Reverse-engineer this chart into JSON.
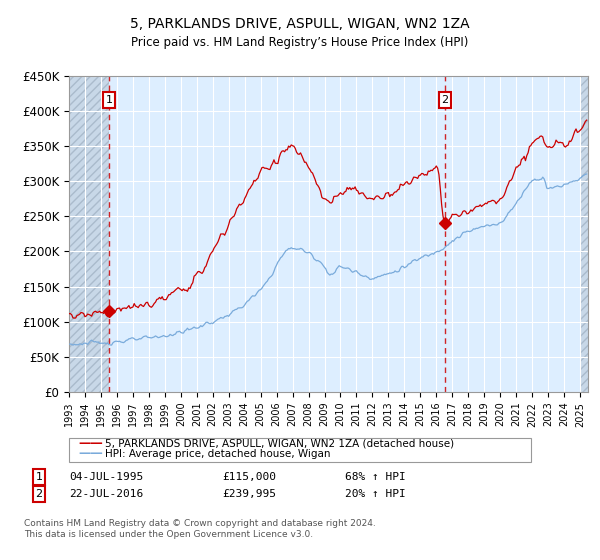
{
  "title": "5, PARKLANDS DRIVE, ASPULL, WIGAN, WN2 1ZA",
  "subtitle": "Price paid vs. HM Land Registry’s House Price Index (HPI)",
  "ylabel_ticks": [
    "£0",
    "£50K",
    "£100K",
    "£150K",
    "£200K",
    "£250K",
    "£300K",
    "£350K",
    "£400K",
    "£450K"
  ],
  "ytick_values": [
    0,
    50000,
    100000,
    150000,
    200000,
    250000,
    300000,
    350000,
    400000,
    450000
  ],
  "ylim": [
    0,
    450000
  ],
  "xlim_start": 1993.0,
  "xlim_end": 2025.5,
  "sale1_year": 1995.5,
  "sale1_price": 115000,
  "sale1_label": "04-JUL-1995",
  "sale1_amount": "£115,000",
  "sale1_hpi": "68% ↑ HPI",
  "sale2_year": 2016.55,
  "sale2_price": 239995,
  "sale2_label": "22-JUL-2016",
  "sale2_amount": "£239,995",
  "sale2_hpi": "20% ↑ HPI",
  "red_color": "#cc0000",
  "blue_color": "#7aabdb",
  "legend_line1": "5, PARKLANDS DRIVE, ASPULL, WIGAN, WN2 1ZA (detached house)",
  "legend_line2": "HPI: Average price, detached house, Wigan",
  "footnote": "Contains HM Land Registry data © Crown copyright and database right 2024.\nThis data is licensed under the Open Government Licence v3.0.",
  "bg_color": "#ddeeff",
  "hatch_color": "#aabbcc",
  "grid_color": "#ffffff"
}
